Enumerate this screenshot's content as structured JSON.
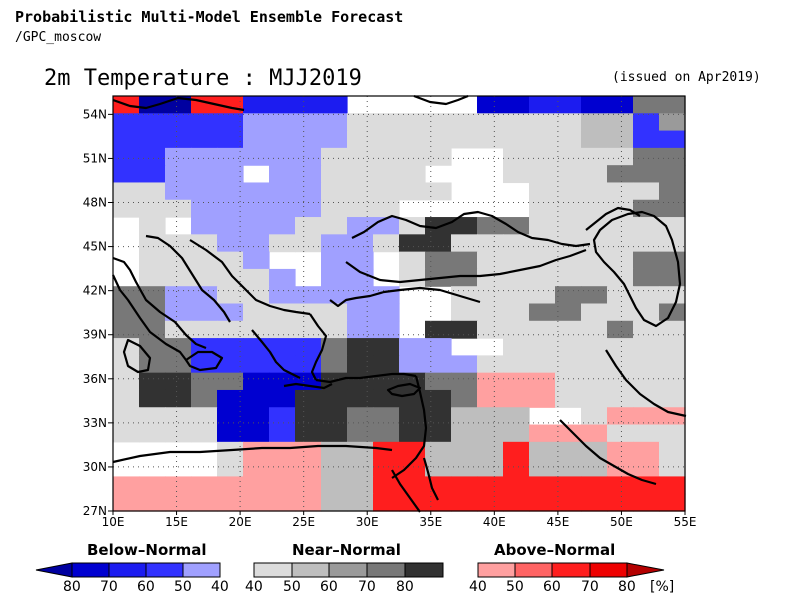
{
  "header": {
    "line1": "Probabilistic Multi-Model Ensemble Forecast",
    "line2": "/GPC_moscow",
    "title": "2m Temperature : MJJ2019",
    "issued": "(issued on Apr2019)"
  },
  "axes": {
    "lat_labels": [
      "54N",
      "51N",
      "48N",
      "45N",
      "42N",
      "39N",
      "36N",
      "33N",
      "30N",
      "27N"
    ],
    "lon_labels": [
      "10E",
      "15E",
      "20E",
      "25E",
      "30E",
      "35E",
      "40E",
      "45E",
      "50E",
      "55E"
    ]
  },
  "categories": {
    "below": {
      "title": "Below–Normal",
      "ticks": [
        "80",
        "70",
        "60",
        "50",
        "40"
      ],
      "colors": [
        "#0000a0",
        "#0000d0",
        "#1c1cf0",
        "#3232ff",
        "#a0a0ff"
      ]
    },
    "near": {
      "title": "Near–Normal",
      "ticks": [
        "40",
        "50",
        "60",
        "70",
        "80"
      ],
      "colors": [
        "#dcdcdc",
        "#bebebe",
        "#9a9a9a",
        "#787878",
        "#323232"
      ]
    },
    "above": {
      "title": "Above–Normal",
      "ticks": [
        "40",
        "50",
        "60",
        "70",
        "80"
      ],
      "unit": "[%]",
      "colors": [
        "#ffa0a0",
        "#ff6464",
        "#ff1e1e",
        "#ee0000",
        "#b40000"
      ]
    }
  },
  "grid_rows": [
    "DNNDDHHHH     MMPPMMTTMMMT",
    "CCCCCEEEEIIIIIIIIIBBCGCCBT",
    "CCCCCEEEEIIIIIIIIIBBCCCCBT",
    "CCEEEEEEIIIII  IIIIIKKTTTT",
    "CCEEE EEIIII   IIIIKKTTTTT",
    "IIEEEEEEIIIII   IIIIIKKTTT",
    "IIIEEEEEIII     IIIIKKTTTT",
    " I EEEEIIEEIXXTTIIIIIIIIII",
    " IIIEEIIEEIXXIIIIIIIIIIIIII",
    " IIIIE  EE IKKIIIIIITTIIII",
    " IIIIIE EE IKKIIIIIITTIIII",
    "TTEEIIEEEEE  IIIIKKIIIIII",
    "TTEEEIIIIEE  IIIKKIIIKKIIII",
    "TTIIIIIIIEE XXIIIIIKIIII A",
    "IKKCCCCCTXXEE  IIIIIIIIAA",
    "IKKCCCCCTXXEEEIIIIIIIIIAA",
    "IXXKKMMMXXXXKKAAAIIIIIII ",
    "IXXKMMMXXXXXXKAAAIIIIIII ",
    "IIIIMMCXXTTXXBBB  IAAAII ",
    "IIIIMMCXXTTXXBBBAAAIIIII ",
    "    IAAABBDDBBBDBBBAAIIAAA ",
    "    IAAABBDDBBBDBBBAAIIAAA ",
    "AAAAAAAABBDDDDDDDDDDDDDBBEE",
    "AAAAAAAABBDDDDDDDDDDDDDBBEE"
  ],
  "grid_note_legend": {
    " ": "#ffffff"
  }
}
